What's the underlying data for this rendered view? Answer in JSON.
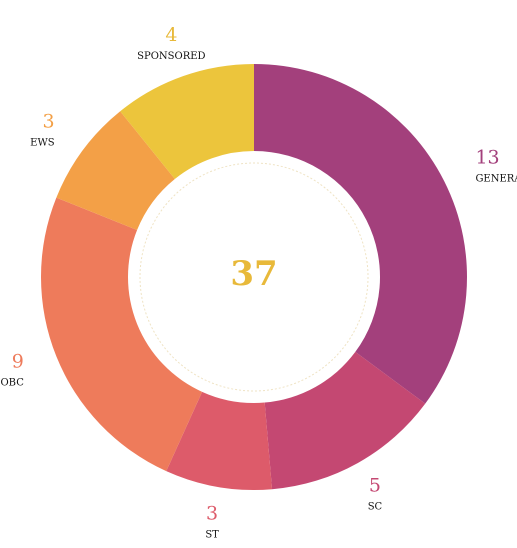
{
  "chart_data": {
    "type": "pie",
    "variant": "donut",
    "total": 37,
    "total_color": "#e8b93a",
    "slices": [
      {
        "label": "GENERAL",
        "value": 13,
        "color": "#a3407c",
        "value_color": "#a3407c"
      },
      {
        "label": "SC",
        "value": 5,
        "color": "#c44872",
        "value_color": "#c44872"
      },
      {
        "label": "ST",
        "value": 3,
        "color": "#dd5b6a",
        "value_color": "#dd5b6a"
      },
      {
        "label": "OBC",
        "value": 9,
        "color": "#ee7b5b",
        "value_color": "#ee7b5b"
      },
      {
        "label": "EWS",
        "value": 3,
        "color": "#f3a047",
        "value_color": "#f3a047"
      },
      {
        "label": "SPONSORED",
        "value": 4,
        "color": "#ecc53c",
        "value_color": "#e8b93a"
      }
    ]
  }
}
